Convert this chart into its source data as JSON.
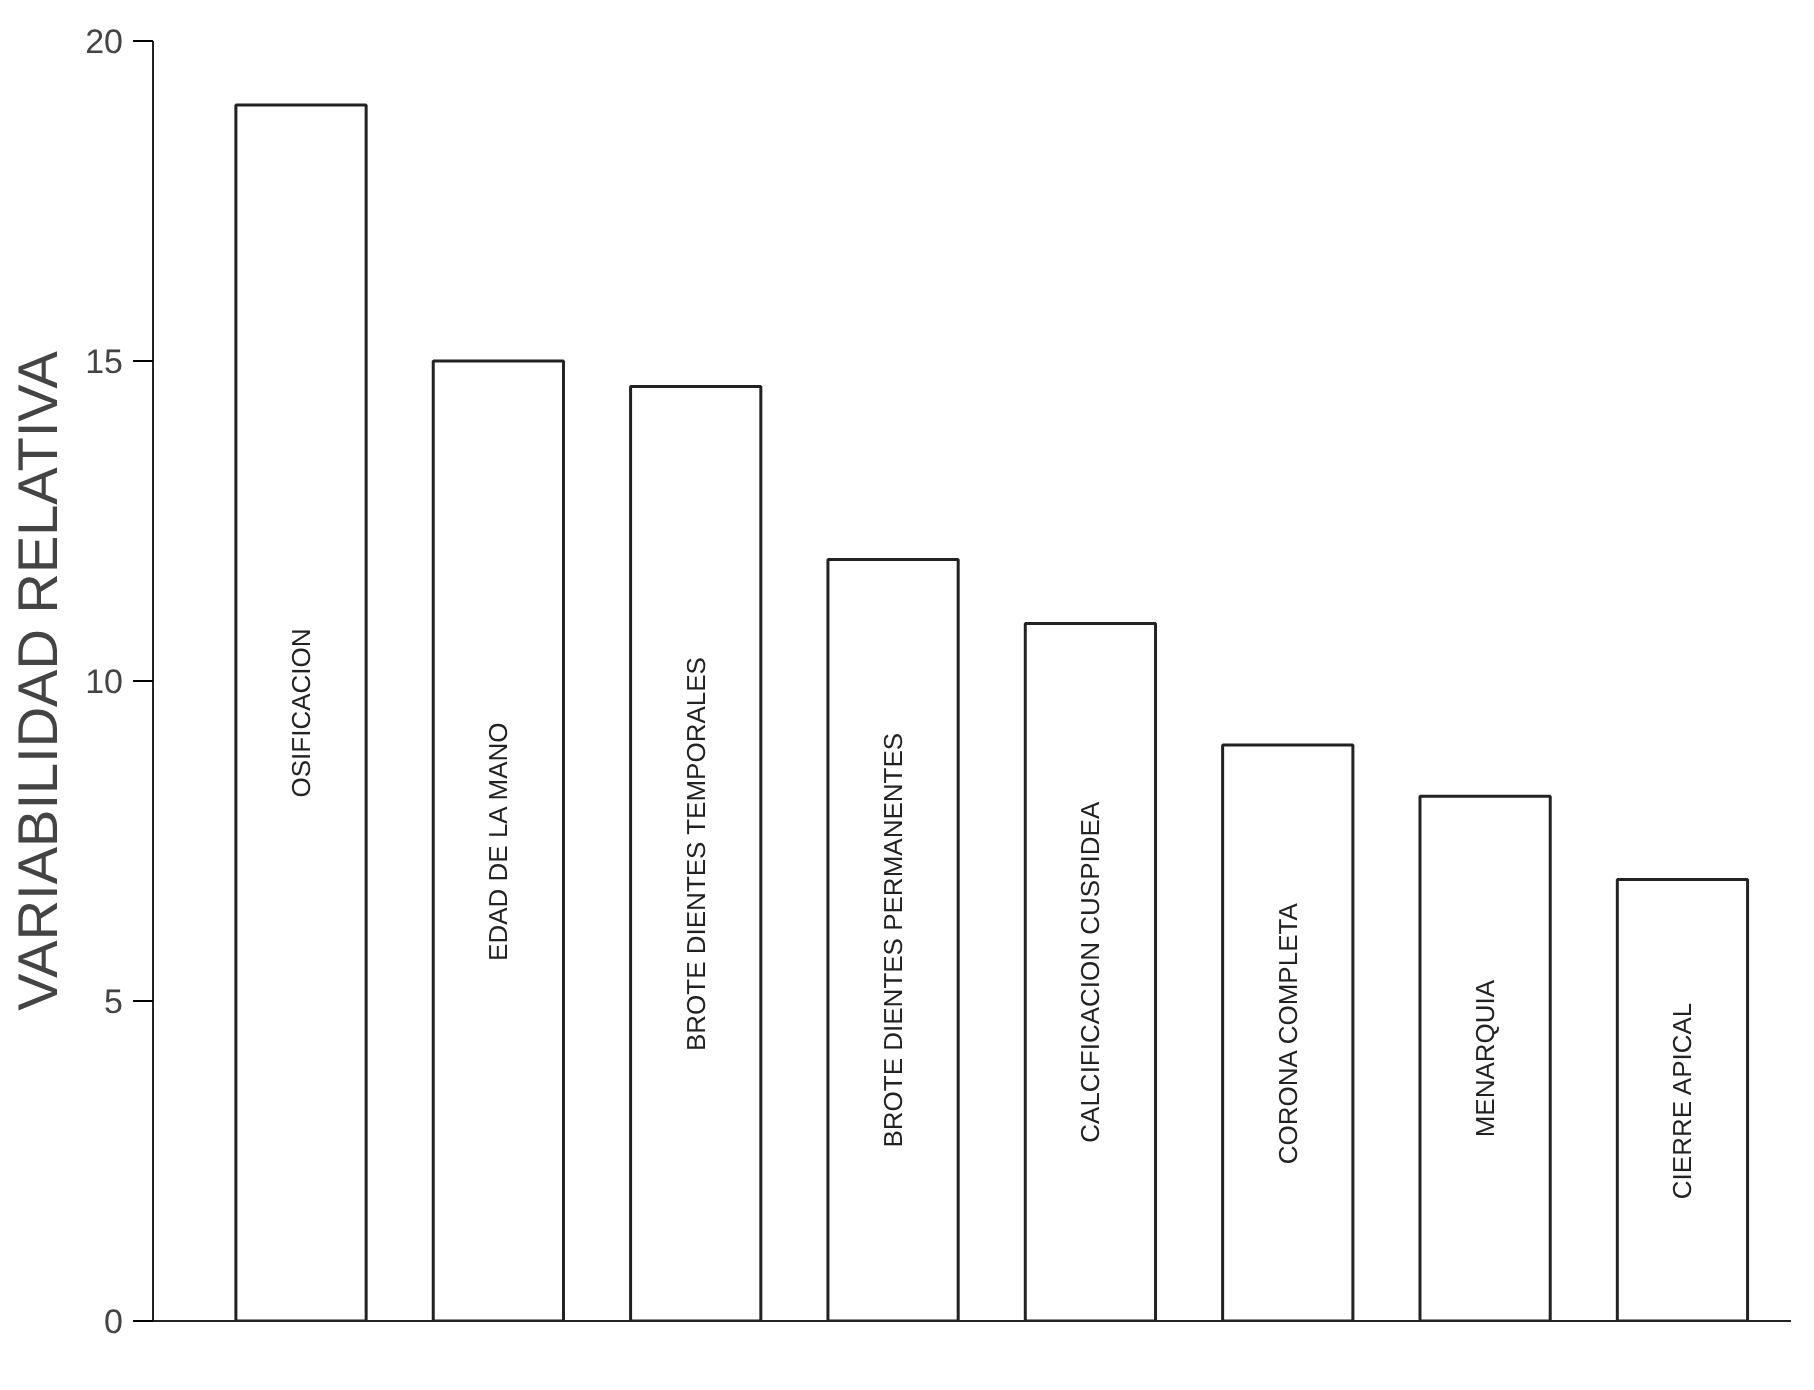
{
  "chart_data": {
    "type": "bar",
    "ylabel": "VARIABILIDAD RELATIVA",
    "categories": [
      "OSIFICACION",
      "EDAD DE LA MANO",
      "BROTE DIENTES TEMPORALES",
      "BROTE DIENTES PERMANENTES",
      "CALCIFICACION CUSPIDEA",
      "CORONA COMPLETA",
      "MENARQUIA",
      "CIERRE APICAL"
    ],
    "values": [
      19.0,
      15.0,
      14.6,
      11.9,
      10.9,
      9.0,
      8.2,
      6.9
    ],
    "color": "#ffffff",
    "ylim": [
      0,
      20
    ],
    "yticks": [
      0,
      5,
      10,
      15,
      20
    ],
    "grid": false
  }
}
